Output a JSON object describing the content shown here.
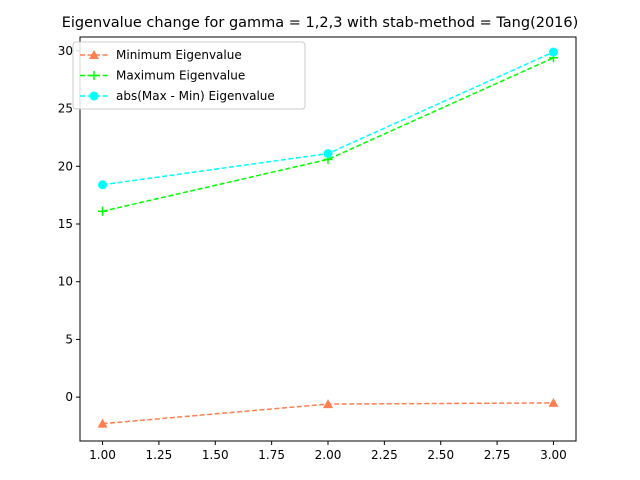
{
  "chart_data": {
    "type": "line",
    "title": "Eigenvalue change for gamma = 1,2,3 with stab-method = Tang(2016)",
    "xlabel": "",
    "ylabel": "",
    "xlim": [
      0.9,
      3.1
    ],
    "ylim": [
      -3.8,
      31.2
    ],
    "grid": false,
    "legend_position": "top-left",
    "x": [
      1,
      2,
      3
    ],
    "x_ticks": [
      "1.00",
      "1.25",
      "1.50",
      "1.75",
      "2.00",
      "2.25",
      "2.50",
      "2.75",
      "3.00"
    ],
    "x_tick_values": [
      1.0,
      1.25,
      1.5,
      1.75,
      2.0,
      2.25,
      2.5,
      2.75,
      3.0
    ],
    "y_ticks": [
      "0",
      "5",
      "10",
      "15",
      "20",
      "25",
      "30"
    ],
    "y_tick_values": [
      0,
      5,
      10,
      15,
      20,
      25,
      30
    ],
    "series": [
      {
        "name": "Minimum Eigenvalue",
        "values": [
          -2.3,
          -0.6,
          -0.5
        ],
        "color": "#ff7f50",
        "marker": "triangle",
        "linestyle": "dashed"
      },
      {
        "name": "Maximum Eigenvalue",
        "values": [
          16.1,
          20.6,
          29.4
        ],
        "color": "#00ff00",
        "marker": "plus",
        "linestyle": "dashed"
      },
      {
        "name": "abs(Max - Min) Eigenvalue",
        "values": [
          18.4,
          21.1,
          29.9
        ],
        "color": "#00ffff",
        "marker": "circle",
        "linestyle": "dashed"
      }
    ]
  }
}
